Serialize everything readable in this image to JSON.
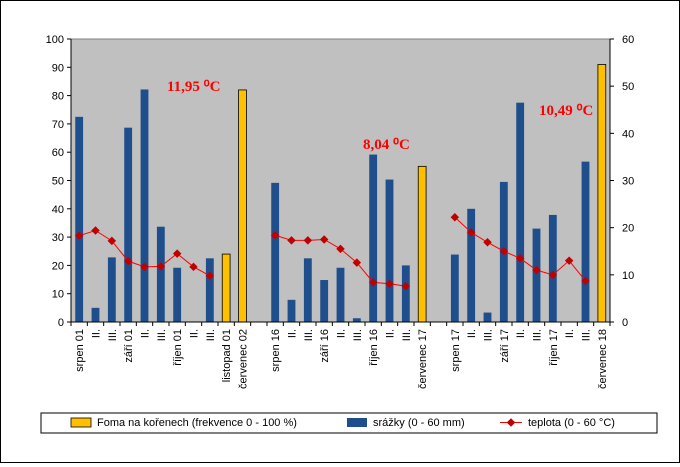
{
  "chart_data": {
    "type": "bar",
    "categories": [
      "srpen 01",
      "II.",
      "III.",
      "září 01",
      "II.",
      "III.",
      "říjen 01",
      "II.",
      "III.",
      "listopad 01",
      "červenec 02",
      "",
      "srpen 16",
      "II.",
      "III.",
      "září 16",
      "II.",
      "III.",
      "říjen 16",
      "II.",
      "III.",
      "červenec 17",
      "",
      "srpen 17",
      "II.",
      "III.",
      "září 17",
      "II.",
      "III.",
      "říjen 17",
      "II.",
      "III.",
      "červenec 18"
    ],
    "series": [
      {
        "name": "Foma na kořenech (frekvence 0 - 100 %)",
        "type": "bar",
        "axis": "left",
        "color": "#ffc000",
        "values": [
          null,
          null,
          null,
          null,
          null,
          null,
          null,
          null,
          null,
          24,
          82,
          null,
          null,
          null,
          null,
          null,
          null,
          null,
          null,
          null,
          null,
          55,
          null,
          null,
          null,
          null,
          null,
          null,
          null,
          null,
          null,
          null,
          91
        ]
      },
      {
        "name": "srážky (0 - 60 mm)",
        "type": "bar",
        "axis": "right",
        "color": "#1f4e8c",
        "values": [
          43.5,
          3,
          13.7,
          41.2,
          49.3,
          20.2,
          11.5,
          0,
          13.5,
          null,
          null,
          null,
          29.5,
          4.7,
          13.5,
          8.9,
          11.5,
          0.8,
          35.5,
          30.2,
          12,
          null,
          null,
          14.3,
          24,
          2,
          29.7,
          46.5,
          19.8,
          22.7,
          0,
          34,
          null
        ]
      },
      {
        "name": "teplota (0 - 60 °C)",
        "type": "line",
        "axis": "right",
        "color": "#ff0000",
        "marker_color": "#c00000",
        "values": [
          18.3,
          19.4,
          17.2,
          12.9,
          11.7,
          11.8,
          14.5,
          11.7,
          9.8,
          null,
          null,
          null,
          18.4,
          17.3,
          17.3,
          17.5,
          15.5,
          12.6,
          8.4,
          8.1,
          7.6,
          null,
          null,
          22.2,
          19,
          16.9,
          15,
          13.5,
          11,
          10,
          13,
          8.7,
          null
        ]
      }
    ],
    "y_left": {
      "min": 0,
      "max": 100,
      "step": 10
    },
    "y_right": {
      "min": 0,
      "max": 60,
      "step": 10
    },
    "grid": false,
    "plot_background": "#c0c0c0",
    "legend": "bottom",
    "annotations": [
      {
        "text": "11,95 ⁰C",
        "near_category": 6
      },
      {
        "text": "8,04 ⁰C",
        "near_category": 18
      },
      {
        "text": "10,49 ⁰C",
        "near_category": 30
      }
    ]
  }
}
